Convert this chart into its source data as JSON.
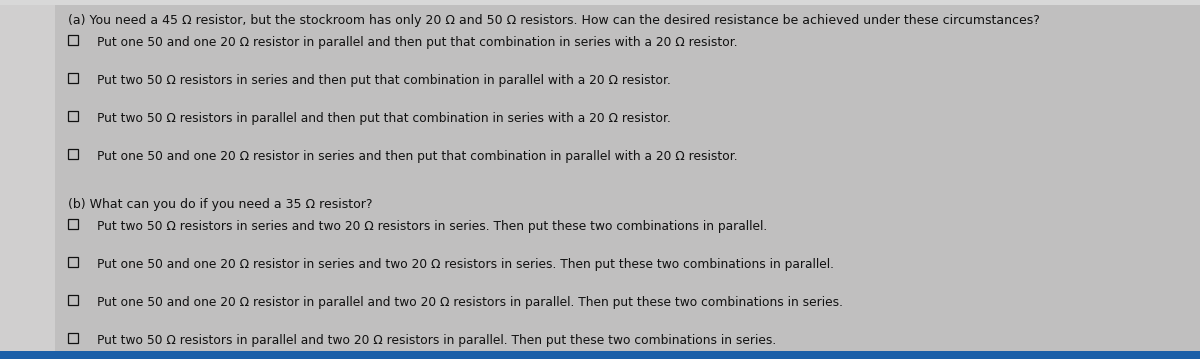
{
  "bg_color": "#b8b8b8",
  "content_bg": "#c0bfbf",
  "text_color": "#111111",
  "left_panel_color": "#d0cfcf",
  "title_a": "(a) You need a 45 Ω resistor, but the stockroom has only 20 Ω and 50 Ω resistors. How can the desired resistance be achieved under these circumstances?",
  "options_a": [
    "Put one 50 and one 20 Ω resistor in parallel and then put that combination in series with a 20 Ω resistor.",
    "Put two 50 Ω resistors in series and then put that combination in parallel with a 20 Ω resistor.",
    "Put two 50 Ω resistors in parallel and then put that combination in series with a 20 Ω resistor.",
    "Put one 50 and one 20 Ω resistor in series and then put that combination in parallel with a 20 Ω resistor."
  ],
  "title_b": "(b) What can you do if you need a 35 Ω resistor?",
  "options_b": [
    "Put two 50 Ω resistors in series and two 20 Ω resistors in series. Then put these two combinations in parallel.",
    "Put one 50 and one 20 Ω resistor in series and two 20 Ω resistors in series. Then put these two combinations in parallel.",
    "Put one 50 and one 20 Ω resistor in parallel and two 20 Ω resistors in parallel. Then put these two combinations in series.",
    "Put two 50 Ω resistors in parallel and two 20 Ω resistors in parallel. Then put these two combinations in series."
  ],
  "font_size_title": 9.0,
  "font_size_option": 8.8,
  "fig_width": 12.0,
  "fig_height": 3.59,
  "bottom_bar_color": "#1a5fa8",
  "top_bar_color": "#e0e0e0"
}
